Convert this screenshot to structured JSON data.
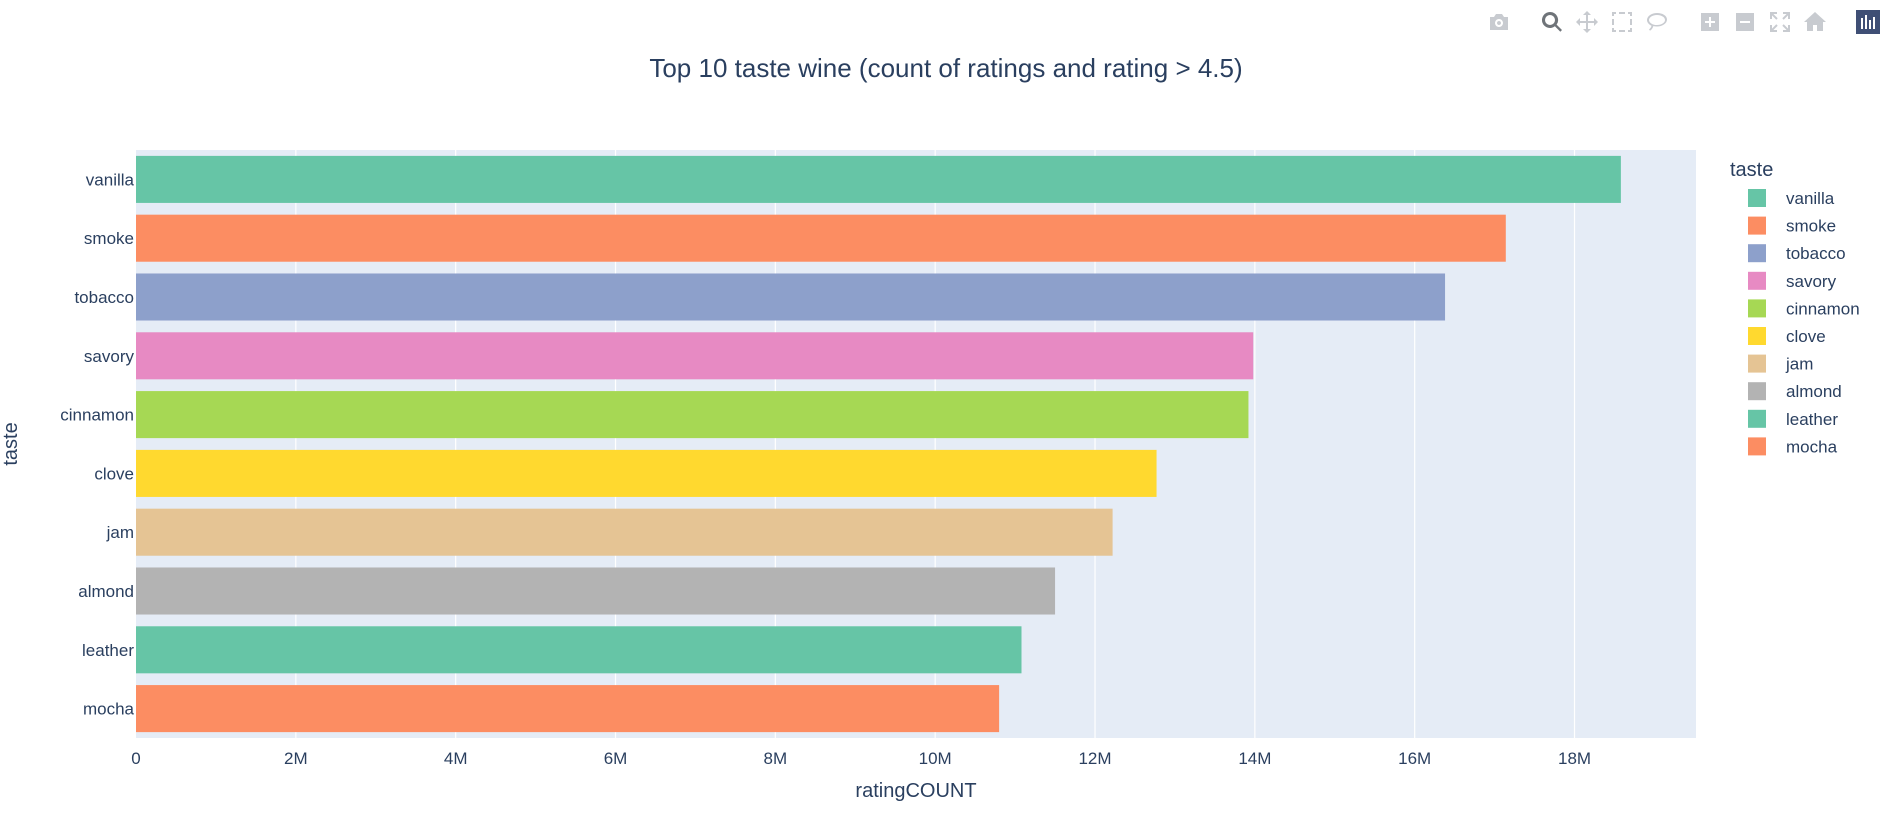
{
  "chart_data": {
    "type": "bar",
    "orientation": "horizontal",
    "title": "Top 10 taste wine (count of ratings and rating > 4.5)",
    "xlabel": "ratingCOUNT",
    "ylabel": "taste",
    "xlim": [
      0,
      19520000
    ],
    "x_ticks": [
      0,
      2000000,
      4000000,
      6000000,
      8000000,
      10000000,
      12000000,
      14000000,
      16000000,
      18000000
    ],
    "x_tick_labels": [
      "0",
      "2M",
      "4M",
      "6M",
      "8M",
      "10M",
      "12M",
      "14M",
      "16M",
      "18M"
    ],
    "categories": [
      "vanilla",
      "smoke",
      "tobacco",
      "savory",
      "cinnamon",
      "clove",
      "jam",
      "almond",
      "leather",
      "mocha"
    ],
    "values": [
      18580000,
      17140000,
      16380000,
      13980000,
      13920000,
      12770000,
      12220000,
      11500000,
      11080000,
      10800000
    ],
    "colors": [
      "#66c5a6",
      "#fc8d62",
      "#8da0cb",
      "#e78ac3",
      "#a6d854",
      "#ffd92f",
      "#e5c494",
      "#b3b3b3",
      "#66c5a6",
      "#fc8d62"
    ],
    "legend": {
      "title": "taste",
      "position": "right"
    },
    "grid": true,
    "plot_bgcolor": "#e5ecf6",
    "gridcolor": "#ffffff"
  },
  "modebar": {
    "buttons": [
      {
        "name": "camera-icon",
        "active": false
      },
      {
        "name": "zoom-icon",
        "active": true
      },
      {
        "name": "pan-icon",
        "active": false
      },
      {
        "name": "box-select-icon",
        "active": false
      },
      {
        "name": "lasso-icon",
        "active": false
      },
      {
        "name": "zoom-in-icon",
        "active": false
      },
      {
        "name": "zoom-out-icon",
        "active": false
      },
      {
        "name": "autoscale-icon",
        "active": false
      },
      {
        "name": "home-icon",
        "active": false
      },
      {
        "name": "plotly-logo-icon",
        "active": false
      }
    ]
  }
}
